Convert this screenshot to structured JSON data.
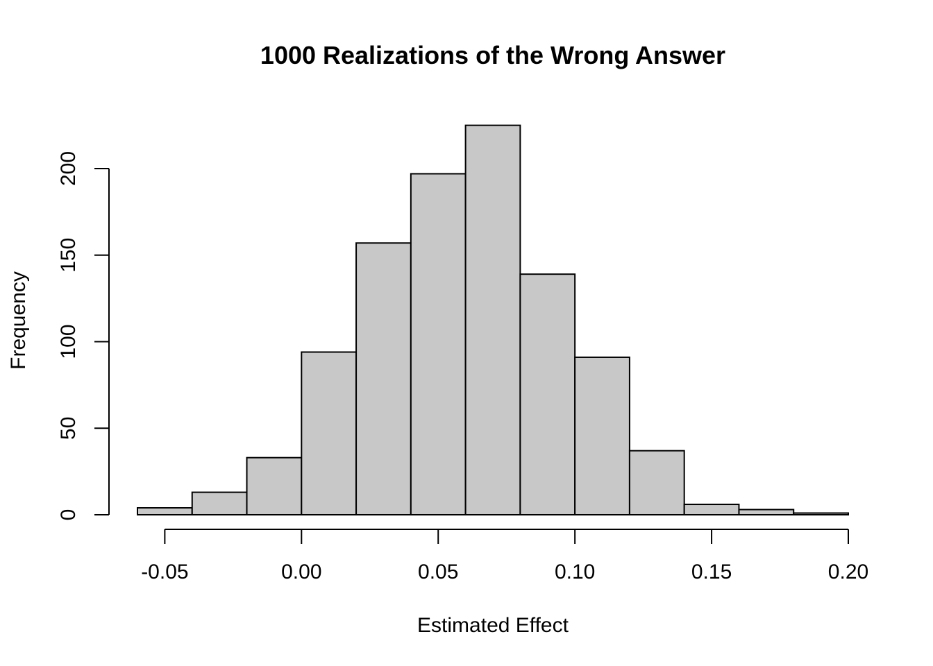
{
  "chart_data": {
    "type": "bar",
    "title": "1000 Realizations of the Wrong Answer",
    "xlabel": "Estimated Effect",
    "ylabel": "Frequency",
    "bins": [
      {
        "from": -0.06,
        "to": -0.04,
        "count": 4
      },
      {
        "from": -0.04,
        "to": -0.02,
        "count": 13
      },
      {
        "from": -0.02,
        "to": 0.0,
        "count": 33
      },
      {
        "from": 0.0,
        "to": 0.02,
        "count": 94
      },
      {
        "from": 0.02,
        "to": 0.04,
        "count": 157
      },
      {
        "from": 0.04,
        "to": 0.06,
        "count": 197
      },
      {
        "from": 0.06,
        "to": 0.08,
        "count": 225
      },
      {
        "from": 0.08,
        "to": 0.1,
        "count": 139
      },
      {
        "from": 0.1,
        "to": 0.12,
        "count": 91
      },
      {
        "from": 0.12,
        "to": 0.14,
        "count": 37
      },
      {
        "from": 0.14,
        "to": 0.16,
        "count": 6
      },
      {
        "from": 0.16,
        "to": 0.18,
        "count": 3
      },
      {
        "from": 0.18,
        "to": 0.2,
        "count": 1
      }
    ],
    "x_ticks": [
      -0.05,
      0.0,
      0.05,
      0.1,
      0.15,
      0.2
    ],
    "x_tick_labels": [
      "-0.05",
      "0.00",
      "0.05",
      "0.10",
      "0.15",
      "0.20"
    ],
    "y_ticks": [
      0,
      50,
      100,
      150,
      200
    ],
    "y_tick_labels": [
      "0",
      "50",
      "100",
      "150",
      "200"
    ],
    "xlim": [
      -0.06,
      0.2
    ],
    "ylim": [
      0,
      225
    ],
    "grid": false,
    "bar_color": "#c8c8c8",
    "edge_color": "#000000"
  }
}
